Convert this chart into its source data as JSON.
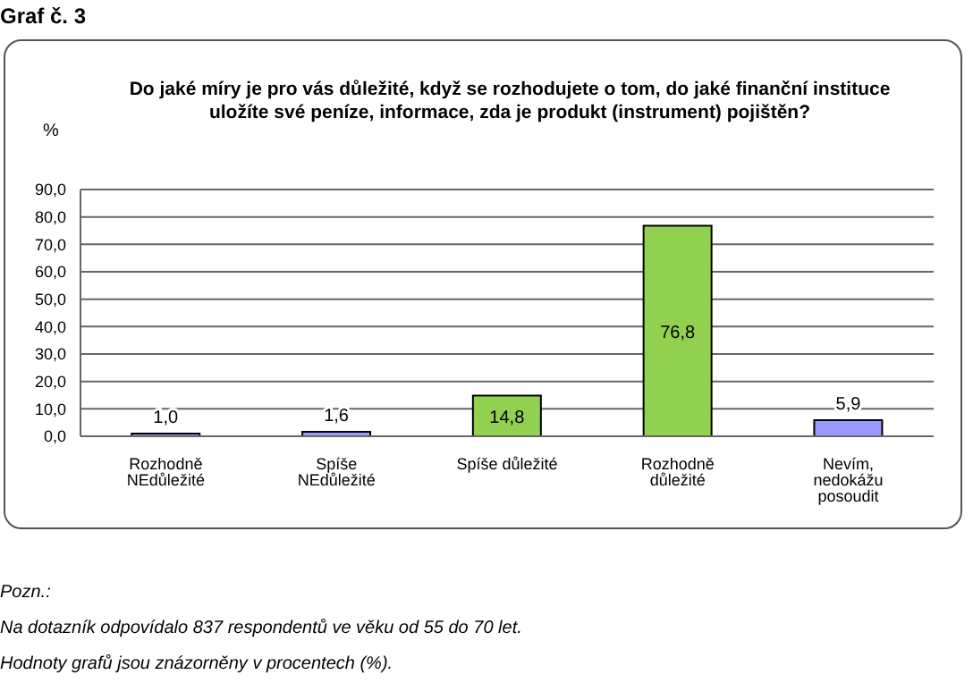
{
  "chart_data": {
    "type": "bar",
    "title": "Graf č. 3",
    "subtitle": "Do jaké míry je pro vás důležité, když se rozhodujete o tom, do jaké finanční instituce uložíte své peníze, informace, zda je produkt (instrument) pojištěn?",
    "ylabel": "%",
    "categories": [
      "Rozhodně NEdůležité",
      "Spíše NEdůležité",
      "Spíše důležité",
      "Rozhodně důležité",
      "Nevím, nedokážu posoudit"
    ],
    "values": [
      1.0,
      1.6,
      14.8,
      76.8,
      5.9
    ],
    "value_labels": [
      "1,0",
      "1,6",
      "14,8",
      "76,8",
      "5,9"
    ],
    "colors": [
      "#9999ff",
      "#9999ff",
      "#92d050",
      "#92d050",
      "#9999ff"
    ],
    "ylim": [
      0,
      90
    ],
    "yticks": [
      {
        "value": 0,
        "label": "0,0"
      },
      {
        "value": 10,
        "label": "10,0"
      },
      {
        "value": 20,
        "label": "20,0"
      },
      {
        "value": 30,
        "label": "30,0"
      },
      {
        "value": 40,
        "label": "40,0"
      },
      {
        "value": 50,
        "label": "50,0"
      },
      {
        "value": 60,
        "label": "60,0"
      },
      {
        "value": 70,
        "label": "70,0"
      },
      {
        "value": 80,
        "label": "80,0"
      },
      {
        "value": 90,
        "label": "90,0"
      }
    ],
    "grid": "y",
    "annotations": [
      "Pozn.:",
      "Na dotazník odpovídalo 837 respondentů ve věku od 55 do 70 let.",
      "Hodnoty grafů jsou znázorněny v procentech (%)."
    ]
  }
}
